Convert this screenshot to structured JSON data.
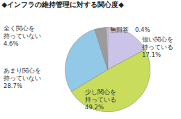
{
  "chart_data": {
    "type": "pie",
    "title": "◆インフラの維持管理に対する関心度◆",
    "categories": [
      "強い関心を持っている",
      "少し関心を持っている",
      "あまり関心を持っていない",
      "全く関心を持っていない",
      "無回答"
    ],
    "values": [
      17.1,
      49.2,
      28.7,
      4.6,
      0.4
    ],
    "value_labels": [
      "17.1%",
      "49.2%",
      "28.7%",
      "4.6%",
      "0.4%"
    ],
    "colors": [
      "#cbc3e8",
      "#c9dc5c",
      "#92c9e6",
      "#9b9b9b",
      "#ffffff"
    ],
    "data_labels": true
  }
}
